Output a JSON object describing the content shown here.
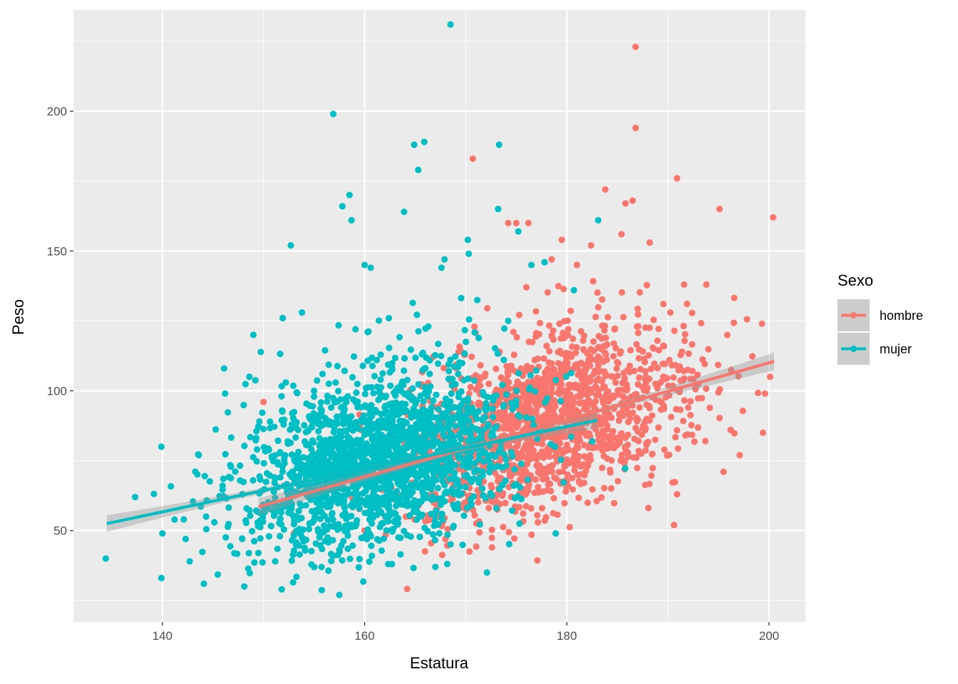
{
  "chart_data": {
    "type": "scatter",
    "title": "",
    "xlabel": "Estatura",
    "ylabel": "Peso",
    "xlim": [
      131.2,
      203.6
    ],
    "ylim": [
      17.3,
      236.2
    ],
    "x_ticks": [
      140,
      160,
      180,
      200
    ],
    "y_ticks": [
      50,
      100,
      150,
      200
    ],
    "grid": true,
    "legend": {
      "title": "Sexo",
      "position": "right",
      "entries": [
        "hombre",
        "mujer"
      ]
    },
    "series": [
      {
        "name": "hombre",
        "color": "#F8766D",
        "trend_line": {
          "x": [
            149.5,
            200.5
          ],
          "y": [
            58.5,
            110.5
          ]
        },
        "cloud": {
          "n": 1600,
          "x_mean": 178.5,
          "x_sd": 7.0,
          "y_mean": 85,
          "y_sd": 16
        },
        "points": [
          [
            150,
            96
          ],
          [
            170.7,
            183
          ],
          [
            186.8,
            223
          ],
          [
            186.8,
            194
          ],
          [
            190.9,
            176
          ],
          [
            200.4,
            162
          ],
          [
            195.1,
            165
          ],
          [
            183.8,
            172
          ],
          [
            186.5,
            168
          ],
          [
            185.8,
            167
          ],
          [
            175.0,
            160
          ],
          [
            174.2,
            160
          ],
          [
            176.2,
            160
          ],
          [
            179.5,
            154
          ],
          [
            182.4,
            152
          ],
          [
            188.2,
            153
          ],
          [
            185.4,
            156
          ],
          [
            191.6,
            138
          ],
          [
            193.8,
            138
          ],
          [
            199.3,
            124
          ],
          [
            200.1,
            105
          ],
          [
            199.6,
            99
          ],
          [
            199.4,
            85
          ],
          [
            196.2,
            86
          ],
          [
            197.1,
            77
          ],
          [
            195.5,
            71
          ],
          [
            190.6,
            52
          ],
          [
            190.9,
            63
          ],
          [
            172.6,
            44
          ],
          [
            168,
            47
          ],
          [
            160,
            50
          ],
          [
            153,
            49
          ],
          [
            155,
            72
          ],
          [
            152,
            66
          ],
          [
            181,
            145
          ],
          [
            178.5,
            147
          ],
          [
            177.8,
            146
          ],
          [
            176,
            137
          ],
          [
            192,
            94
          ],
          [
            193.7,
            82
          ]
        ]
      },
      {
        "name": "mujer",
        "color": "#00BFC4",
        "trend_line": {
          "x": [
            134.5,
            183
          ],
          "y": [
            52.5,
            89.5
          ]
        },
        "cloud": {
          "n": 1900,
          "x_mean": 161.5,
          "x_sd": 6.5,
          "y_mean": 69,
          "y_sd": 16
        },
        "points": [
          [
            168.5,
            231
          ],
          [
            156.9,
            199
          ],
          [
            165.9,
            189
          ],
          [
            164.9,
            188
          ],
          [
            173.3,
            188
          ],
          [
            165.3,
            179
          ],
          [
            158.5,
            170
          ],
          [
            157.8,
            166
          ],
          [
            158.7,
            161
          ],
          [
            163.9,
            164
          ],
          [
            173.2,
            165
          ],
          [
            170.2,
            154
          ],
          [
            170.3,
            149
          ],
          [
            152.7,
            152
          ],
          [
            160.0,
            145
          ],
          [
            160.6,
            144
          ],
          [
            167.9,
            147
          ],
          [
            167.6,
            144
          ],
          [
            175.2,
            157
          ],
          [
            183.1,
            161
          ],
          [
            177.8,
            146
          ],
          [
            149,
            120
          ],
          [
            134.4,
            40
          ],
          [
            137.3,
            62
          ],
          [
            139.9,
            80
          ],
          [
            139.9,
            33
          ],
          [
            140,
            49
          ],
          [
            142.3,
            47
          ],
          [
            142.7,
            39
          ],
          [
            144.1,
            31
          ],
          [
            148.1,
            30
          ],
          [
            151.8,
            29
          ],
          [
            157.5,
            27
          ],
          [
            172.1,
            35
          ],
          [
            143.6,
            77
          ],
          [
            146.2,
            99
          ],
          [
            146.1,
            108
          ],
          [
            148.6,
            105
          ],
          [
            153.8,
            128
          ],
          [
            151.9,
            126
          ],
          [
            159.1,
            122
          ],
          [
            162.4,
            126
          ],
          [
            160.3,
            121
          ],
          [
            161.2,
            111
          ],
          [
            155.0,
            100
          ],
          [
            166.3,
            123
          ],
          [
            176.5,
            145
          ],
          [
            180.7,
            136
          ],
          [
            174.2,
            125
          ],
          [
            178.9,
            49
          ],
          [
            167.0,
            37
          ],
          [
            162.7,
            38
          ]
        ]
      }
    ]
  }
}
